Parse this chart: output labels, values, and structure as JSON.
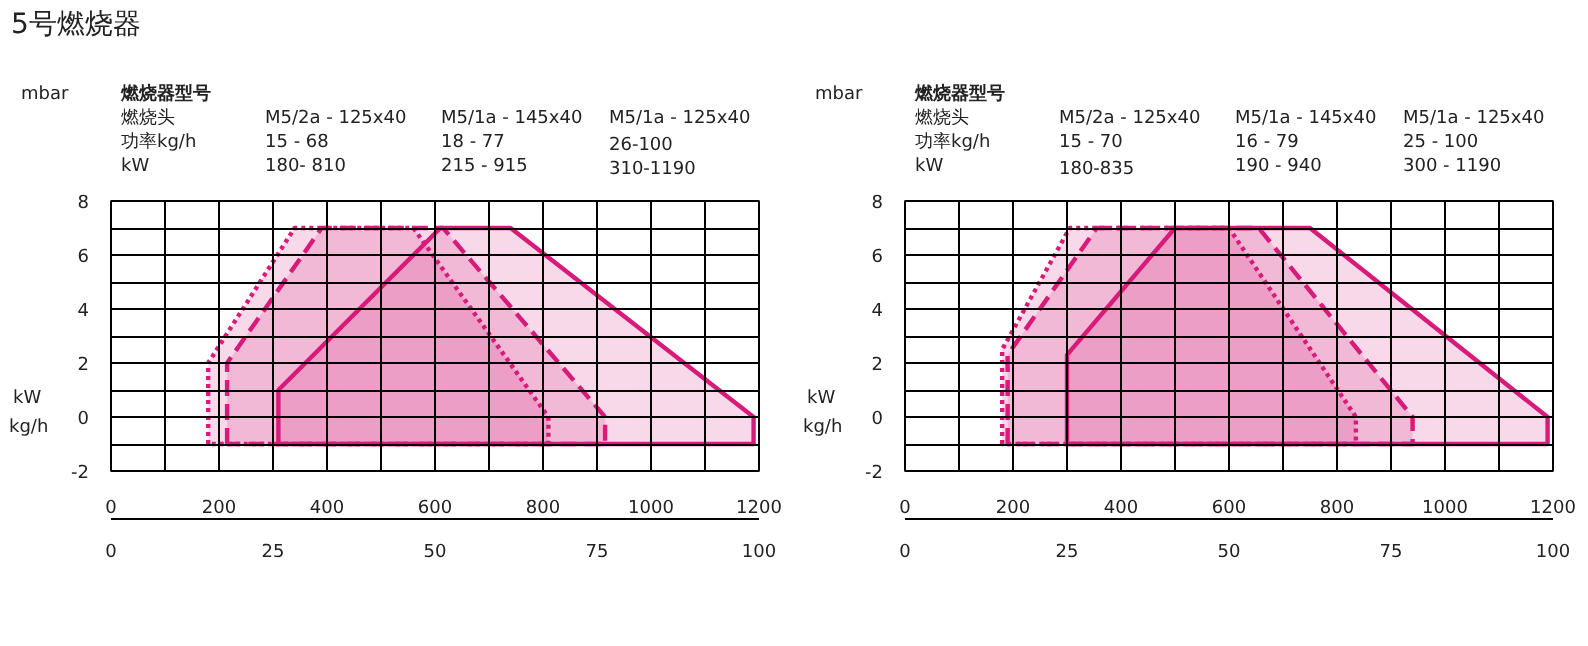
{
  "chart_data": [
    {
      "type": "area",
      "title": "5号燃烧器",
      "xlabel": "kW",
      "ylabel": "mbar",
      "x2label": "kg/h",
      "annotations": [
        "燃烧器型号",
        "燃烧头",
        "M5/2a - 125x40",
        "M5/1a - 145x40",
        "M5/1a - 125x40",
        "功率kg/h",
        "15 - 68",
        "18 - 77",
        "26-100",
        "kW",
        "180- 810",
        "215 - 915",
        "310-1190"
      ],
      "xlim": [
        0,
        1200
      ],
      "xticks": [
        0,
        {
          "value": 100,
          "label": null
        },
        200,
        {
          "value": 300,
          "label": null
        },
        400,
        {
          "value": 500,
          "label": null
        },
        600,
        {
          "value": 700,
          "label": null
        },
        800,
        {
          "value": 900,
          "label": null
        },
        1000,
        {
          "value": 1100,
          "label": null
        },
        1200
      ],
      "ylim": [
        -2,
        8
      ],
      "yticks": [
        -2,
        {
          "value": -1,
          "label": null
        },
        0,
        {
          "value": 1,
          "label": null
        },
        2,
        {
          "value": 3,
          "label": null
        },
        4,
        {
          "value": 5,
          "label": null
        },
        6,
        {
          "value": 7,
          "label": null
        },
        8
      ],
      "x2lim": [
        0,
        100
      ],
      "x2ticks": [
        0,
        25,
        50,
        75,
        100
      ],
      "grid": true,
      "series": [
        {
          "color": "#d81b7a",
          "line_style": "dotted",
          "x": [
            180,
            180,
            340,
            560,
            810,
            810,
            180
          ],
          "values": [
            -1,
            2,
            7,
            7,
            0,
            -1,
            -1
          ]
        },
        {
          "color": "#d81b7a",
          "line_style": "dashed",
          "x": [
            215,
            215,
            390,
            615,
            915,
            915,
            215
          ],
          "values": [
            -1,
            2,
            7,
            7,
            0,
            -1,
            -1
          ]
        },
        {
          "color": "#d81b7a",
          "line_style": "solid",
          "x": [
            310,
            310,
            610,
            740,
            1190,
            1190,
            310
          ],
          "values": [
            -1,
            1,
            7,
            7,
            0,
            -1,
            -1
          ]
        }
      ]
    },
    {
      "type": "area",
      "xlabel": "kW",
      "ylabel": "mbar",
      "x2label": "kg/h",
      "annotations": [
        "燃烧器型号",
        "燃烧头",
        "M5/2a - 125x40",
        "M5/1a - 145x40",
        "M5/1a - 125x40",
        "功率kg/h",
        "15 - 70",
        "16 - 79",
        "25 - 100",
        "kW",
        "180-835",
        "190 - 940",
        "300 - 1190"
      ],
      "xlim": [
        0,
        1200
      ],
      "xticks": [
        0,
        {
          "value": 100,
          "label": null
        },
        200,
        {
          "value": 300,
          "label": null
        },
        400,
        {
          "value": 500,
          "label": null
        },
        600,
        {
          "value": 700,
          "label": null
        },
        800,
        {
          "value": 900,
          "label": null
        },
        1000,
        {
          "value": 1100,
          "label": null
        },
        1200
      ],
      "ylim": [
        -2,
        8
      ],
      "yticks": [
        -2,
        {
          "value": -1,
          "label": null
        },
        0,
        {
          "value": 1,
          "label": null
        },
        2,
        {
          "value": 3,
          "label": null
        },
        4,
        {
          "value": 5,
          "label": null
        },
        6,
        {
          "value": 7,
          "label": null
        },
        8
      ],
      "x2lim": [
        0,
        100
      ],
      "x2ticks": [
        0,
        25,
        50,
        75,
        100
      ],
      "grid": true,
      "series": [
        {
          "color": "#d81b7a",
          "line_style": "dotted",
          "x": [
            180,
            180,
            305,
            600,
            835,
            835,
            180
          ],
          "values": [
            -1,
            2.5,
            7,
            7,
            0,
            -1,
            -1
          ]
        },
        {
          "color": "#d81b7a",
          "line_style": "dashed",
          "x": [
            190,
            190,
            355,
            655,
            940,
            940,
            190
          ],
          "values": [
            -1,
            2.3,
            7,
            7,
            0,
            -1,
            -1
          ]
        },
        {
          "color": "#d81b7a",
          "line_style": "solid",
          "x": [
            300,
            300,
            500,
            750,
            1190,
            1190,
            300
          ],
          "values": [
            -1,
            2.3,
            7,
            7,
            0,
            -1,
            -1
          ]
        }
      ]
    }
  ]
}
